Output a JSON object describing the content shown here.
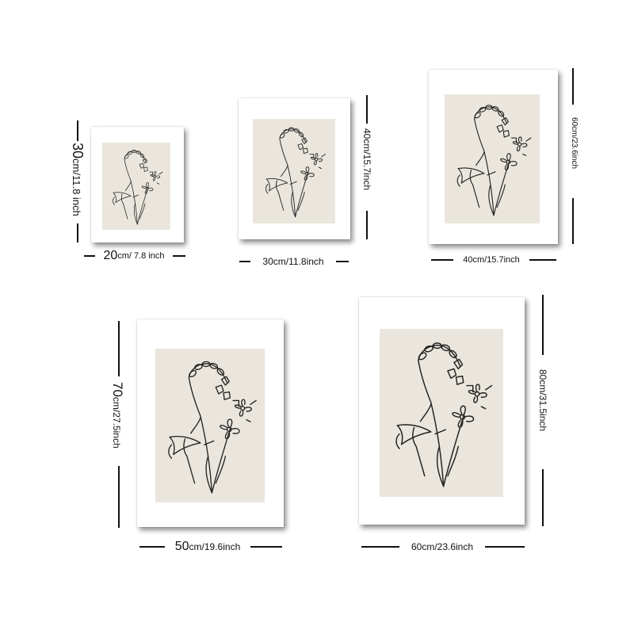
{
  "prints": [
    {
      "width_label_main": "20",
      "width_label_rest": "cm/ 7.8 inch",
      "height_label_main": "30",
      "height_label_rest": "cm/11.8 inch"
    },
    {
      "width_label_main": "",
      "width_label_rest": "30cm/11.8inch",
      "height_label_main": "",
      "height_label_rest": "40cm/15.7inch"
    },
    {
      "width_label_main": "",
      "width_label_rest": "40cm/15.7inch",
      "height_label_main": "",
      "height_label_rest": "60cm/23.6inch"
    },
    {
      "width_label_main": "50",
      "width_label_rest": "cm/19.6inch",
      "height_label_main": "70",
      "height_label_rest": "cm/27.5inch"
    },
    {
      "width_label_main": "",
      "width_label_rest": "60cm/23.6inch",
      "height_label_main": "",
      "height_label_rest": "80cm/31.5inch"
    }
  ],
  "colors": {
    "mat": "#eae6dd",
    "frame": "#ffffff",
    "ink": "#111111"
  },
  "artwork": "botanical line drawing"
}
